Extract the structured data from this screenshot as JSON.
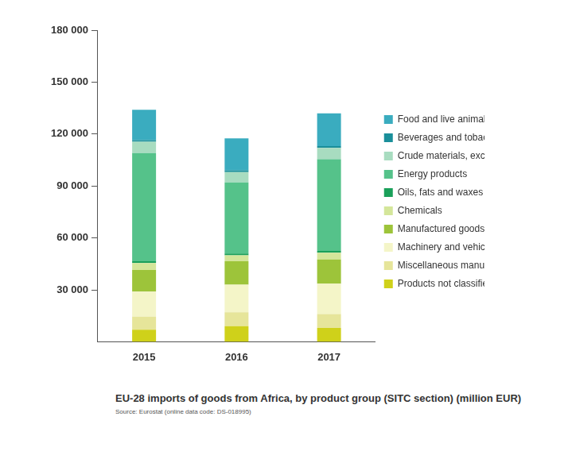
{
  "chart_data": {
    "type": "bar",
    "stacked": true,
    "title": "EU-28 imports of goods from Africa, by product group (SITC section) (million EUR)",
    "subtitle": "Source: Eurostat (online data code: DS-018995)",
    "categories": [
      "2015",
      "2016",
      "2017"
    ],
    "series": [
      {
        "name": "Products not classified elsewhere",
        "color": "#cfd11a",
        "values": [
          7000,
          9000,
          8000
        ]
      },
      {
        "name": "Miscellaneous manufactured articles",
        "color": "#e6e59a",
        "values": [
          7500,
          8000,
          8000
        ]
      },
      {
        "name": "Machinery and vehicles",
        "color": "#f4f5c8",
        "values": [
          14500,
          16000,
          17500
        ]
      },
      {
        "name": "Manufactured goods classified by material",
        "color": "#9dc43a",
        "values": [
          12500,
          13500,
          14000
        ]
      },
      {
        "name": "Chemicals",
        "color": "#d4e69a",
        "values": [
          4000,
          3500,
          4000
        ]
      },
      {
        "name": "Oils, fats and waxes",
        "color": "#1aa05a",
        "values": [
          1000,
          1000,
          1000
        ]
      },
      {
        "name": "Energy products",
        "color": "#55c28a",
        "values": [
          62500,
          41000,
          53000
        ]
      },
      {
        "name": "Crude materials, except fuels",
        "color": "#a8dcc0",
        "values": [
          6500,
          6000,
          6500
        ]
      },
      {
        "name": "Beverages and tobacco",
        "color": "#1a8f9a",
        "values": [
          1000,
          1000,
          1000
        ]
      },
      {
        "name": "Food and live animals",
        "color": "#3aacbf",
        "values": [
          17500,
          18500,
          19000
        ]
      }
    ],
    "ylim": [
      0,
      180000
    ],
    "yticks": [
      {
        "value": 30000,
        "label": "30 000"
      },
      {
        "value": 60000,
        "label": "60 000"
      },
      {
        "value": 90000,
        "label": "90 000"
      },
      {
        "value": 120000,
        "label": "120 000"
      },
      {
        "value": 150000,
        "label": "150 000"
      },
      {
        "value": 180000,
        "label": "180 000"
      }
    ],
    "legend": "right",
    "grid": false
  }
}
